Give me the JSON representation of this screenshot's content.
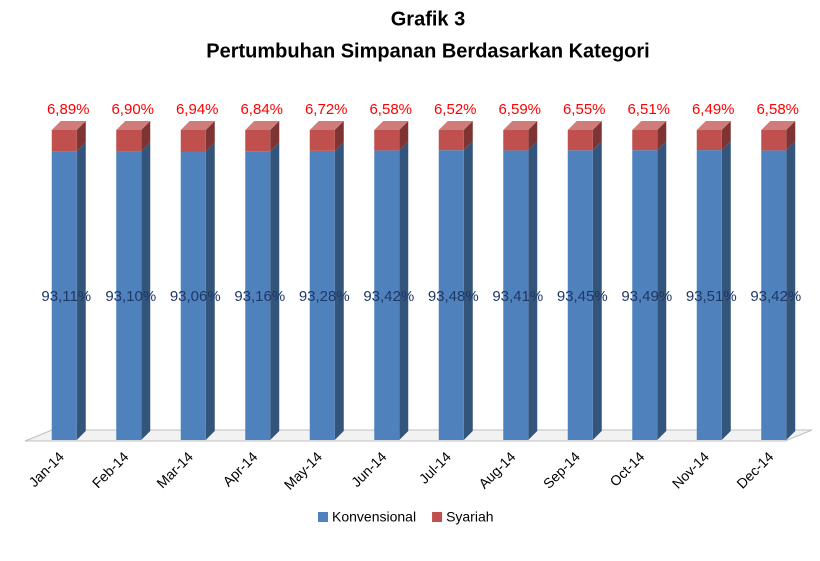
{
  "chart_data": {
    "type": "bar",
    "stacked": true,
    "title": "Grafik 3",
    "subtitle": "Pertumbuhan Simpanan Berdasarkan Kategori",
    "categories": [
      "Jan-14",
      "Feb-14",
      "Mar-14",
      "Apr-14",
      "May-14",
      "Jun-14",
      "Jul-14",
      "Aug-14",
      "Sep-14",
      "Oct-14",
      "Nov-14",
      "Dec-14"
    ],
    "series": [
      {
        "name": "Konvensional",
        "color": "#4f81bd",
        "label_color": "#1f3864",
        "values": [
          93.11,
          93.1,
          93.06,
          93.16,
          93.28,
          93.42,
          93.48,
          93.41,
          93.45,
          93.49,
          93.51,
          93.42
        ],
        "value_labels": [
          "93,11%",
          "93,10%",
          "93,06%",
          "93,16%",
          "93,28%",
          "93,42%",
          "93,48%",
          "93,41%",
          "93,45%",
          "93,49%",
          "93,51%",
          "93,42%"
        ]
      },
      {
        "name": "Syariah",
        "color": "#c0504d",
        "label_color": "#ff0000",
        "values": [
          6.89,
          6.9,
          6.94,
          6.84,
          6.72,
          6.58,
          6.52,
          6.59,
          6.55,
          6.51,
          6.49,
          6.58
        ],
        "value_labels": [
          "6,89%",
          "6,90%",
          "6,94%",
          "6,84%",
          "6,72%",
          "6,58%",
          "6,52%",
          "6,59%",
          "6,55%",
          "6,51%",
          "6,49%",
          "6,58%"
        ]
      }
    ],
    "legend": "bottom"
  }
}
